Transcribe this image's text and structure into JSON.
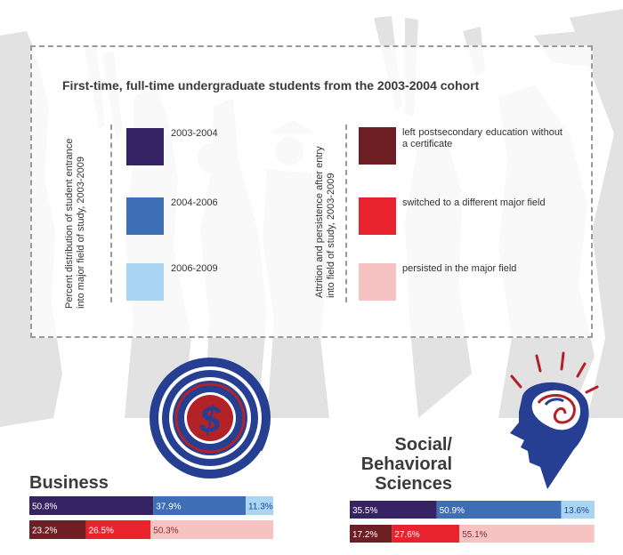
{
  "legend": {
    "title": "First-time, full-time undergraduate students from the 2003-2004 cohort",
    "group1_label": "Percent distribution of student entrance into major field of study, 2003-2009",
    "group1_items": [
      "2003-2004",
      "2004-2006",
      "2006-2009"
    ],
    "group2_label": "Attrition and persistence after entry into field of study, 2003-2009",
    "group2_items": [
      "left postsecondary education without a certificate",
      "switched to a different major field",
      "persisted in the major field"
    ]
  },
  "colors": {
    "p2003_2004": "#352364",
    "p2004_2006": "#3e6eb6",
    "p2006_2009": "#a8d6f2",
    "left": "#6e1f24",
    "switched": "#e8232e",
    "persisted": "#f6c3c2",
    "icon_blue": "#263f92",
    "icon_red": "#b32227",
    "silhouette": "#e2e2e2"
  },
  "icons": [
    "dollar-target-icon",
    "head-brain-icon"
  ],
  "chart_data": [
    {
      "type": "bar",
      "title": "Business",
      "series": [
        {
          "name": "2003-2004",
          "row": 1,
          "value": 50.8,
          "label": "50.8%"
        },
        {
          "name": "2004-2006",
          "row": 1,
          "value": 37.9,
          "label": "37.9%"
        },
        {
          "name": "2006-2009",
          "row": 1,
          "value": 11.3,
          "label": "11.3%"
        },
        {
          "name": "left postsecondary education without a certificate",
          "row": 2,
          "value": 23.2,
          "label": "23.2%"
        },
        {
          "name": "switched to a different major field",
          "row": 2,
          "value": 26.5,
          "label": "26.5%"
        },
        {
          "name": "persisted in the major field",
          "row": 2,
          "value": 50.3,
          "label": "50.3%"
        }
      ]
    },
    {
      "type": "bar",
      "title": "Social/ Behavioral Sciences",
      "title_lines": [
        "Social/",
        "Behavioral",
        "Sciences"
      ],
      "series": [
        {
          "name": "2003-2004",
          "row": 1,
          "value": 35.5,
          "label": "35.5%"
        },
        {
          "name": "2004-2006",
          "row": 1,
          "value": 50.9,
          "label": "50.9%"
        },
        {
          "name": "2006-2009",
          "row": 1,
          "value": 13.6,
          "label": "13.6%"
        },
        {
          "name": "left postsecondary education without a certificate",
          "row": 2,
          "value": 17.2,
          "label": "17.2%"
        },
        {
          "name": "switched to a different major field",
          "row": 2,
          "value": 27.6,
          "label": "27.6%"
        },
        {
          "name": "persisted in the major field",
          "row": 2,
          "value": 55.1,
          "label": "55.1%"
        }
      ]
    }
  ]
}
